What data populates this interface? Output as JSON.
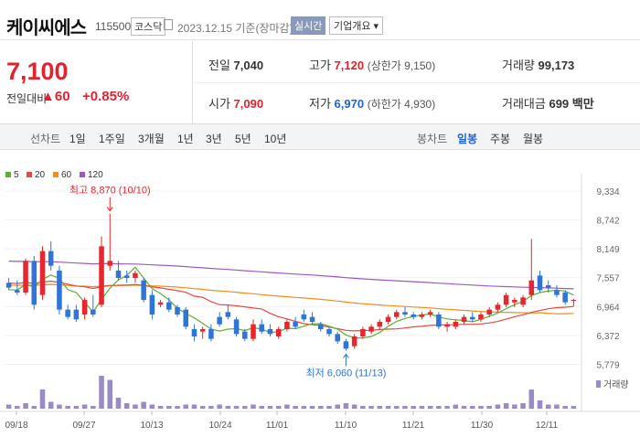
{
  "header": {
    "name": "케이씨에스",
    "code": "115500",
    "market": "코스닥",
    "date": "2023.12.15 기준(장마감)",
    "realtime": "실시간",
    "info_btn": "기업개요 ▾"
  },
  "quote": {
    "price": "7,100",
    "change_label": "전일대비",
    "change_arrow": "▲",
    "change": "60",
    "change_pct": "+0.85%",
    "prev_label": "전일",
    "prev": "7,040",
    "high_label": "고가",
    "high": "7,120",
    "high_sub": "(상한가 9,150)",
    "volume_label": "거래량",
    "volume": "99,173",
    "open_label": "시가",
    "open": "7,090",
    "low_label": "저가",
    "low": "6,970",
    "low_sub": "(하한가 4,930)",
    "amount_label": "거래대금",
    "amount": "699 백만"
  },
  "tabs": {
    "line_label": "선차트",
    "line_items": [
      "1일",
      "1주일",
      "3개월",
      "1년",
      "3년",
      "5년",
      "10년"
    ],
    "candle_label": "봉차트",
    "candle_items": [
      "일봉",
      "주봉",
      "월봉"
    ],
    "active": "일봉"
  },
  "legend": [
    {
      "name": "5",
      "color": "#5cb034"
    },
    {
      "name": "20",
      "color": "#e8493f"
    },
    {
      "name": "60",
      "color": "#f08c1a"
    },
    {
      "name": "120",
      "color": "#9b59c4"
    }
  ],
  "chart_data": {
    "type": "candlestick",
    "ylim": [
      5600,
      9500
    ],
    "yticks": [
      "9,334",
      "8,742",
      "8,149",
      "7,557",
      "6,964",
      "6,372",
      "5,779"
    ],
    "xticks": [
      "09/18",
      "09/27",
      "10/13",
      "10/24",
      "11/01",
      "11/10",
      "11/21",
      "11/30",
      "12/11"
    ],
    "annotations": {
      "high": "최고 8,870 (10/10)",
      "low": "최저 6,060 (11/13)"
    },
    "volume_label": "거래량",
    "candles": [
      [
        7450,
        7550,
        7300,
        7350
      ],
      [
        7300,
        7500,
        7200,
        7250
      ],
      [
        7250,
        7950,
        7200,
        7900
      ],
      [
        7900,
        8000,
        6900,
        7000
      ],
      [
        7200,
        8200,
        7100,
        8100
      ],
      [
        8100,
        8300,
        7700,
        7800
      ],
      [
        7700,
        7800,
        6800,
        6900
      ],
      [
        6900,
        7000,
        6700,
        6750
      ],
      [
        6900,
        7000,
        6650,
        6700
      ],
      [
        6800,
        7150,
        6700,
        7100
      ],
      [
        6900,
        7200,
        6750,
        6800
      ],
      [
        7000,
        8400,
        6950,
        8200
      ],
      [
        7800,
        8870,
        7700,
        7900
      ],
      [
        7700,
        7900,
        7500,
        7550
      ],
      [
        7600,
        7700,
        7450,
        7550
      ],
      [
        7550,
        7700,
        7450,
        7650
      ],
      [
        7500,
        7550,
        7050,
        7100
      ],
      [
        7200,
        7300,
        6700,
        6800
      ],
      [
        7000,
        7100,
        6950,
        7050
      ],
      [
        7050,
        7150,
        6850,
        6900
      ],
      [
        6950,
        7000,
        6750,
        6800
      ],
      [
        6900,
        6950,
        6500,
        6550
      ],
      [
        6500,
        6600,
        6250,
        6350
      ],
      [
        6450,
        6550,
        6300,
        6500
      ],
      [
        6500,
        6600,
        6250,
        6300
      ],
      [
        6750,
        6850,
        6550,
        6600
      ],
      [
        6850,
        7000,
        6700,
        6750
      ],
      [
        6700,
        6750,
        6350,
        6400
      ],
      [
        6450,
        6500,
        6250,
        6300
      ],
      [
        6300,
        6700,
        6250,
        6600
      ],
      [
        6600,
        6700,
        6400,
        6450
      ],
      [
        6500,
        6600,
        6350,
        6400
      ],
      [
        6350,
        6550,
        6300,
        6500
      ],
      [
        6500,
        6700,
        6450,
        6650
      ],
      [
        6650,
        6750,
        6500,
        6550
      ],
      [
        6800,
        6900,
        6650,
        6700
      ],
      [
        6750,
        6850,
        6600,
        6650
      ],
      [
        6600,
        6650,
        6450,
        6500
      ],
      [
        6500,
        6550,
        6350,
        6400
      ],
      [
        6400,
        6450,
        6200,
        6250
      ],
      [
        6250,
        6300,
        6060,
        6100
      ],
      [
        6150,
        6400,
        6100,
        6350
      ],
      [
        6350,
        6550,
        6300,
        6500
      ],
      [
        6450,
        6600,
        6400,
        6550
      ],
      [
        6550,
        6700,
        6500,
        6650
      ],
      [
        6650,
        6800,
        6600,
        6750
      ],
      [
        6750,
        6900,
        6700,
        6850
      ],
      [
        6850,
        6950,
        6750,
        6800
      ],
      [
        6800,
        6850,
        6700,
        6750
      ],
      [
        6750,
        6850,
        6700,
        6800
      ],
      [
        6800,
        6900,
        6750,
        6850
      ],
      [
        6800,
        6850,
        6500,
        6550
      ],
      [
        6550,
        6650,
        6450,
        6600
      ],
      [
        6550,
        6700,
        6500,
        6650
      ],
      [
        6650,
        6800,
        6600,
        6750
      ],
      [
        6750,
        6850,
        6650,
        6700
      ],
      [
        6700,
        6850,
        6650,
        6800
      ],
      [
        6800,
        6950,
        6750,
        6900
      ],
      [
        6900,
        7050,
        6850,
        7000
      ],
      [
        7000,
        7250,
        6950,
        7200
      ],
      [
        7050,
        7150,
        6950,
        7100
      ],
      [
        7000,
        7200,
        6950,
        7150
      ],
      [
        7200,
        8350,
        7100,
        7500
      ],
      [
        7600,
        7700,
        7250,
        7300
      ],
      [
        7400,
        7500,
        7250,
        7350
      ],
      [
        7300,
        7400,
        7150,
        7200
      ],
      [
        7250,
        7300,
        7000,
        7050
      ],
      [
        7100,
        7120,
        6970,
        7100
      ]
    ],
    "volumes": [
      3,
      2,
      4,
      2,
      14,
      5,
      3,
      2,
      2,
      3,
      2,
      24,
      21,
      8,
      4,
      3,
      5,
      3,
      2,
      2,
      2,
      3,
      3,
      2,
      2,
      3,
      2,
      2,
      2,
      3,
      2,
      2,
      2,
      3,
      2,
      2,
      2,
      2,
      2,
      3,
      4,
      3,
      2,
      2,
      2,
      2,
      2,
      2,
      2,
      2,
      2,
      2,
      2,
      3,
      2,
      2,
      2,
      2,
      3,
      4,
      3,
      4,
      14,
      6,
      3,
      3,
      2,
      2
    ]
  }
}
